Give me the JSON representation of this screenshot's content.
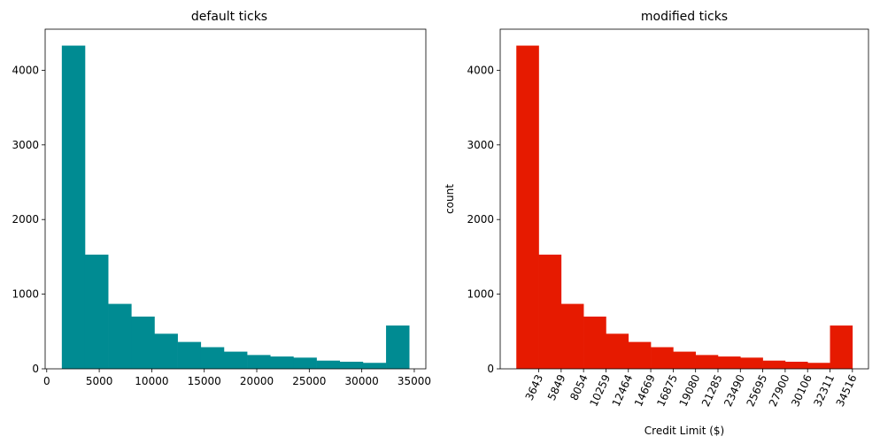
{
  "chart_data": [
    {
      "type": "bar",
      "title": "default ticks",
      "xlabel": "",
      "ylabel": "",
      "color": "#008b92",
      "bin_edges": [
        1438,
        3643,
        5849,
        8054,
        10259,
        12464,
        14669,
        16875,
        19080,
        21285,
        23490,
        25695,
        27900,
        30106,
        32311,
        34516
      ],
      "values": [
        4330,
        1530,
        870,
        700,
        470,
        360,
        290,
        230,
        185,
        165,
        150,
        110,
        95,
        80,
        580
      ],
      "xlim": [
        -150,
        36100
      ],
      "ylim": [
        0,
        4550
      ],
      "xticks": [
        0,
        5000,
        10000,
        15000,
        20000,
        25000,
        30000,
        35000
      ],
      "yticks": [
        0,
        1000,
        2000,
        3000,
        4000
      ]
    },
    {
      "type": "bar",
      "title": "modified ticks",
      "xlabel": "Credit Limit ($)",
      "ylabel": "count",
      "color": "#e61a00",
      "bin_edges": [
        1438,
        3643,
        5849,
        8054,
        10259,
        12464,
        14669,
        16875,
        19080,
        21285,
        23490,
        25695,
        27900,
        30106,
        32311,
        34516
      ],
      "values": [
        4330,
        1530,
        870,
        700,
        470,
        360,
        290,
        230,
        185,
        165,
        150,
        110,
        95,
        80,
        580
      ],
      "xlim": [
        -150,
        36100
      ],
      "ylim": [
        0,
        4550
      ],
      "xticks": [
        3643,
        5849,
        8054,
        10259,
        12464,
        14669,
        16875,
        19080,
        21285,
        23490,
        25695,
        27900,
        30106,
        32311,
        34516
      ],
      "xtick_rotation": 65,
      "yticks": [
        0,
        1000,
        2000,
        3000,
        4000
      ]
    }
  ]
}
